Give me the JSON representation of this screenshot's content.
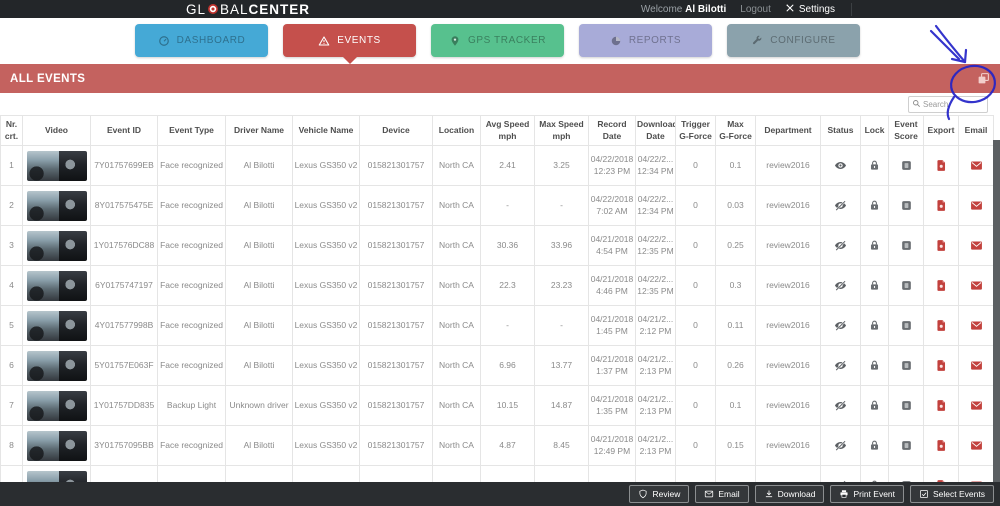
{
  "topbar": {
    "logo": {
      "part1": "GL",
      "part2": "BAL",
      "part3": "CENTER"
    },
    "welcome_label": "Welcome",
    "username": "Al Bilotti",
    "logout_label": "Logout",
    "settings_label": "Settings"
  },
  "nav": {
    "tabs": [
      {
        "label": "DASHBOARD",
        "color": "#45a9d6",
        "icon": "gauge-icon",
        "active": false
      },
      {
        "label": "EVENTS",
        "color": "#c5504c",
        "icon": "warning-triangle-icon",
        "active": true
      },
      {
        "label": "GPS TRACKER",
        "color": "#57c18e",
        "icon": "map-pin-icon",
        "active": false
      },
      {
        "label": "REPORTS",
        "color": "#a8abd8",
        "icon": "pie-chart-icon",
        "active": false
      },
      {
        "label": "CONFIGURE",
        "color": "#8ba2ac",
        "icon": "wrench-icon",
        "active": false
      }
    ]
  },
  "section": {
    "title": "ALL EVENTS",
    "action_icon": "copy-icon"
  },
  "search": {
    "placeholder": "Search",
    "icon": "search-icon"
  },
  "annotation": {
    "color": "#2323c8",
    "description": "hand-drawn arrow and circle highlighting copy icon"
  },
  "table": {
    "columns": [
      "Nr.\ncrt.",
      "Video",
      "Event ID",
      "Event Type",
      "Driver Name",
      "Vehicle Name",
      "Device",
      "Location",
      "Avg Speed\nmph",
      "Max Speed\nmph",
      "Record Date",
      "Download\nDate",
      "Trigger\nG-Force",
      "Max\nG-Force",
      "Department",
      "Status",
      "Lock",
      "Event\nScore",
      "Export",
      "Email"
    ],
    "icons": {
      "status_viewed": "eye-icon",
      "status_unviewed": "eye-off-icon",
      "lock": "lock-icon",
      "event_score": "score-badge-icon",
      "export": "pdf-file-icon",
      "email": "envelope-icon"
    },
    "rows": [
      {
        "nr": "1",
        "event_id": "7Y01757699EB",
        "event_type": "Face recognized",
        "driver_name": "Al Bilotti",
        "vehicle_name": "Lexus GS350 v2",
        "device": "015821301757",
        "location": "North CA",
        "avg_speed": "2.41",
        "max_speed": "3.25",
        "record_date": [
          "04/22/2018",
          "12:23 PM"
        ],
        "download_date": [
          "04/22/2...",
          "12:34 PM"
        ],
        "trigger_g_force": "0",
        "max_g_force": "0.1",
        "department": "review2016",
        "status": "viewed"
      },
      {
        "nr": "2",
        "event_id": "8Y017575475E",
        "event_type": "Face recognized",
        "driver_name": "Al Bilotti",
        "vehicle_name": "Lexus GS350 v2",
        "device": "015821301757",
        "location": "North CA",
        "avg_speed": "-",
        "max_speed": "-",
        "record_date": [
          "04/22/2018",
          "7:02 AM"
        ],
        "download_date": [
          "04/22/2...",
          "12:34 PM"
        ],
        "trigger_g_force": "0",
        "max_g_force": "0.03",
        "department": "review2016",
        "status": "unviewed"
      },
      {
        "nr": "3",
        "event_id": "1Y017576DC88",
        "event_type": "Face recognized",
        "driver_name": "Al Bilotti",
        "vehicle_name": "Lexus GS350 v2",
        "device": "015821301757",
        "location": "North CA",
        "avg_speed": "30.36",
        "max_speed": "33.96",
        "record_date": [
          "04/21/2018",
          "4:54 PM"
        ],
        "download_date": [
          "04/22/2...",
          "12:35 PM"
        ],
        "trigger_g_force": "0",
        "max_g_force": "0.25",
        "department": "review2016",
        "status": "unviewed"
      },
      {
        "nr": "4",
        "event_id": "6Y0175747197",
        "event_type": "Face recognized",
        "driver_name": "Al Bilotti",
        "vehicle_name": "Lexus GS350 v2",
        "device": "015821301757",
        "location": "North CA",
        "avg_speed": "22.3",
        "max_speed": "23.23",
        "record_date": [
          "04/21/2018",
          "4:46 PM"
        ],
        "download_date": [
          "04/22/2...",
          "12:35 PM"
        ],
        "trigger_g_force": "0",
        "max_g_force": "0.3",
        "department": "review2016",
        "status": "unviewed"
      },
      {
        "nr": "5",
        "event_id": "4Y017577998B",
        "event_type": "Face recognized",
        "driver_name": "Al Bilotti",
        "vehicle_name": "Lexus GS350 v2",
        "device": "015821301757",
        "location": "North CA",
        "avg_speed": "-",
        "max_speed": "-",
        "record_date": [
          "04/21/2018",
          "1:45 PM"
        ],
        "download_date": [
          "04/21/2...",
          "2:12 PM"
        ],
        "trigger_g_force": "0",
        "max_g_force": "0.11",
        "department": "review2016",
        "status": "unviewed"
      },
      {
        "nr": "6",
        "event_id": "5Y01757E063F",
        "event_type": "Face recognized",
        "driver_name": "Al Bilotti",
        "vehicle_name": "Lexus GS350 v2",
        "device": "015821301757",
        "location": "North CA",
        "avg_speed": "6.96",
        "max_speed": "13.77",
        "record_date": [
          "04/21/2018",
          "1:37 PM"
        ],
        "download_date": [
          "04/21/2...",
          "2:13 PM"
        ],
        "trigger_g_force": "0",
        "max_g_force": "0.26",
        "department": "review2016",
        "status": "unviewed"
      },
      {
        "nr": "7",
        "event_id": "1Y01757DD835",
        "event_type": "Backup Light",
        "driver_name": "Unknown driver",
        "vehicle_name": "Lexus GS350 v2",
        "device": "015821301757",
        "location": "North CA",
        "avg_speed": "10.15",
        "max_speed": "14.87",
        "record_date": [
          "04/21/2018",
          "1:35 PM"
        ],
        "download_date": [
          "04/21/2...",
          "2:13 PM"
        ],
        "trigger_g_force": "0",
        "max_g_force": "0.1",
        "department": "review2016",
        "status": "unviewed"
      },
      {
        "nr": "8",
        "event_id": "3Y01757095BB",
        "event_type": "Face recognized",
        "driver_name": "Al Bilotti",
        "vehicle_name": "Lexus GS350 v2",
        "device": "015821301757",
        "location": "North CA",
        "avg_speed": "4.87",
        "max_speed": "8.45",
        "record_date": [
          "04/21/2018",
          "12:49 PM"
        ],
        "download_date": [
          "04/21/2...",
          "2:13 PM"
        ],
        "trigger_g_force": "0",
        "max_g_force": "0.15",
        "department": "review2016",
        "status": "unviewed"
      },
      {
        "nr": "9",
        "event_id": "",
        "event_type": "Face recognized",
        "driver_name": "Al Bilotti",
        "vehicle_name": "Lexus GS350 v2",
        "device": "015821301757",
        "location": "North CA",
        "avg_speed": "",
        "max_speed": "",
        "record_date": [
          "04/21/2018",
          ""
        ],
        "download_date": [
          "04/21/2...",
          ""
        ],
        "trigger_g_force": "",
        "max_g_force": "",
        "department": "",
        "status": "unviewed"
      }
    ]
  },
  "footer": {
    "buttons": [
      {
        "label": "Review",
        "icon": "review-shield-icon"
      },
      {
        "label": "Email",
        "icon": "envelope-icon"
      },
      {
        "label": "Download",
        "icon": "download-icon"
      },
      {
        "label": "Print Event",
        "icon": "printer-icon"
      },
      {
        "label": "Select Events",
        "icon": "checkbox-icon"
      }
    ]
  },
  "colors": {
    "topbar_bg": "#232629",
    "footer_bg": "#2a2d30",
    "section_bar": "#c4625f",
    "dashboard_blue": "#45a9d6",
    "events_red": "#c5504c",
    "gps_green": "#57c18e",
    "reports_lavender": "#a8abd8",
    "configure_gray": "#8ba2ac",
    "icon_red": "#c2413d",
    "icon_gray": "#6a6e72",
    "annotation_blue": "#2323c8"
  }
}
